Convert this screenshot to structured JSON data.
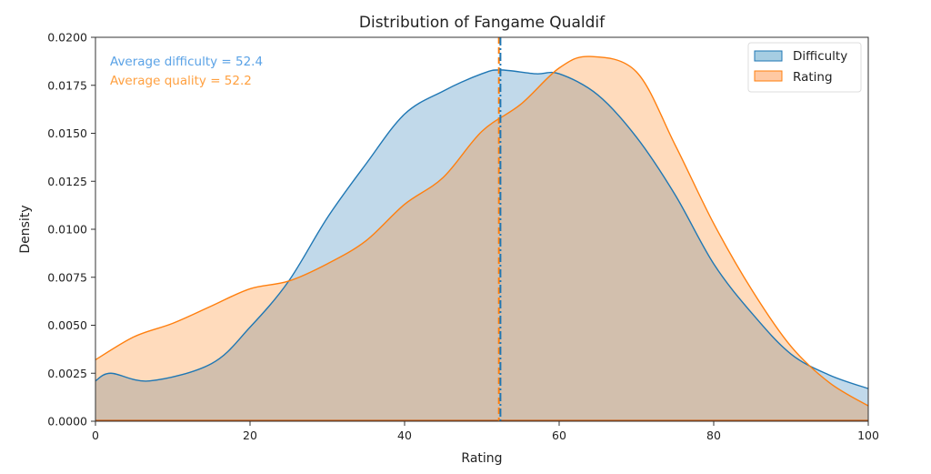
{
  "chart_data": {
    "type": "area",
    "title": "Distribution of Fangame Qualdif",
    "xlabel": "Rating",
    "ylabel": "Density",
    "xlim": [
      0,
      100
    ],
    "ylim": [
      0,
      0.02
    ],
    "xticks": [
      0,
      20,
      40,
      60,
      80,
      100
    ],
    "xtick_labels": [
      "0",
      "20",
      "40",
      "60",
      "80",
      "100"
    ],
    "yticks": [
      0,
      0.0025,
      0.005,
      0.0075,
      0.01,
      0.0125,
      0.015,
      0.0175,
      0.02
    ],
    "ytick_labels": [
      "0.0000",
      "0.0025",
      "0.0050",
      "0.0075",
      "0.0100",
      "0.0125",
      "0.0150",
      "0.0175",
      "0.0200"
    ],
    "legend_position": "top-right",
    "series": [
      {
        "name": "Difficulty",
        "color": "#1f77b4",
        "fill": "#a6cde2",
        "mean": 52.4,
        "x": [
          0,
          2,
          7,
          15,
          20,
          25,
          30,
          35,
          40,
          45,
          50,
          52.4,
          57,
          60,
          65,
          70,
          75,
          80,
          85,
          90,
          95,
          100
        ],
        "y": [
          0.0021,
          0.0025,
          0.0021,
          0.003,
          0.0049,
          0.0073,
          0.0106,
          0.0134,
          0.016,
          0.0172,
          0.0181,
          0.0183,
          0.0181,
          0.0181,
          0.017,
          0.0148,
          0.0118,
          0.0082,
          0.0056,
          0.0035,
          0.0024,
          0.0017
        ]
      },
      {
        "name": "Rating",
        "color": "#ff7f0e",
        "fill": "#ffc9a3",
        "mean": 52.2,
        "x": [
          0,
          5,
          10,
          15,
          20,
          25,
          30,
          35,
          40,
          45,
          50,
          55,
          60,
          64,
          70,
          75,
          80,
          85,
          90,
          95,
          100
        ],
        "y": [
          0.0032,
          0.0044,
          0.0051,
          0.006,
          0.0069,
          0.0073,
          0.0082,
          0.0094,
          0.0113,
          0.0127,
          0.0151,
          0.0165,
          0.0184,
          0.019,
          0.0182,
          0.0144,
          0.0103,
          0.0068,
          0.0039,
          0.002,
          0.0008
        ]
      }
    ],
    "annotations": [
      {
        "text": "Average difficulty = 52.4",
        "color": "#5aa2e6"
      },
      {
        "text": "Average quality = 52.2",
        "color": "#ffa040"
      }
    ]
  }
}
